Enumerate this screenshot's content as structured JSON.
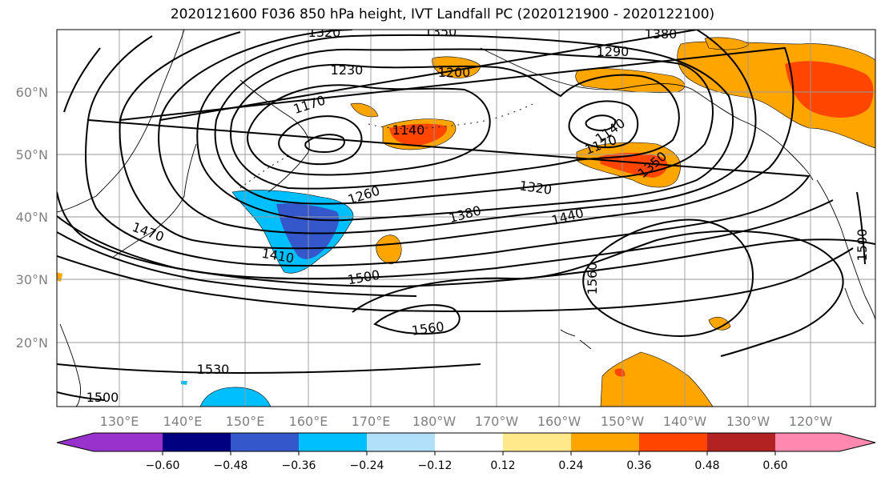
{
  "title": "2020121600 F036 850 hPa height, IVT Landfall PC (2020121900 - 2020122100)",
  "lat_labels": [
    "60°N",
    "50°N",
    "40°N",
    "30°N",
    "20°N"
  ],
  "lon_labels": [
    "130°E",
    "140°E",
    "150°E",
    "160°E",
    "170°E",
    "180°W",
    "170°W",
    "160°W",
    "150°W",
    "140°W",
    "130°W",
    "120°W"
  ],
  "contour_labels": [
    "1320",
    "1350",
    "1380",
    "1290",
    "1230",
    "1200",
    "1170",
    "1140",
    "1140",
    "1170",
    "1350",
    "1260",
    "1320",
    "1470",
    "1380",
    "1440",
    "1410",
    "1500",
    "1560",
    "1500",
    "1560",
    "1530",
    "1500"
  ],
  "colorbar": {
    "tick_labels": [
      "−0.60",
      "−0.48",
      "−0.36",
      "−0.24",
      "−0.12",
      "0.12",
      "0.24",
      "0.36",
      "0.48",
      "0.60"
    ],
    "colors": [
      "#9932cc",
      "#000080",
      "#3458cc",
      "#00bfff",
      "#b0e0fa",
      "#ffffff",
      "#ffe98a",
      "#ffa500",
      "#ff4500",
      "#b22222",
      "#ff88b0"
    ]
  },
  "shading": {
    "positive_colors": [
      "#ffa500",
      "#ff4500"
    ],
    "negative_colors": [
      "#00bfff",
      "#3458cc"
    ]
  }
}
